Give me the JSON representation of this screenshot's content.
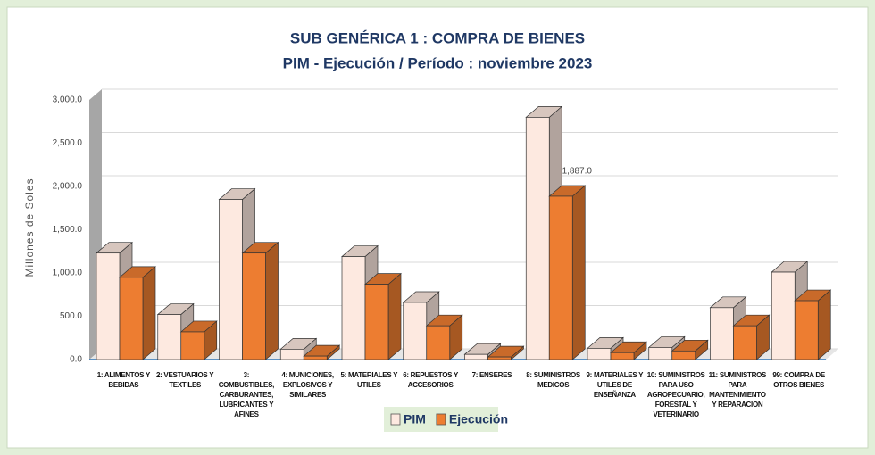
{
  "chart_data": {
    "type": "bar3d",
    "title": "SUB GENÉRICA 1 : COMPRA DE BIENES",
    "subtitle": "PIM - Ejecución / Período : noviembre 2023",
    "y_label": "Millones de Soles",
    "categories": [
      "1: ALIMENTOS Y BEBIDAS",
      "2: VESTUARIOS Y TEXTILES",
      "3: COMBUSTIBLES, CARBURANTES, LUBRICANTES Y AFINES",
      "4: MUNICIONES, EXPLOSIVOS Y SIMILARES",
      "5: MATERIALES Y UTILES",
      "6: REPUESTOS Y ACCESORIOS",
      "7: ENSERES",
      "8: SUMINISTROS MEDICOS",
      "9: MATERIALES Y UTILES DE ENSEÑANZA",
      "10: SUMINISTROS PARA USO AGROPECUARIO, FORESTAL Y VETERINARIO",
      "11: SUMINISTROS PARA MANTENIMIENTO Y REPARACION",
      "99: COMPRA DE OTROS BIENES"
    ],
    "series": [
      {
        "name": "PIM",
        "color": "#fde9e0",
        "values": [
          1230,
          520,
          1850,
          120,
          1190,
          660,
          60,
          2800,
          130,
          140,
          600,
          1010
        ]
      },
      {
        "name": "Ejecución",
        "color": "#ed7d31",
        "values": [
          950,
          320,
          1230,
          40,
          870,
          390,
          30,
          1887,
          80,
          100,
          390,
          680
        ],
        "value_labels": [
          null,
          null,
          null,
          null,
          null,
          null,
          null,
          "1,887.0",
          null,
          null,
          null,
          null
        ]
      }
    ],
    "ylim": [
      0,
      3000
    ],
    "yticks": [
      {
        "value": 0,
        "label": "0.0"
      },
      {
        "value": 500,
        "label": "500.0"
      },
      {
        "value": 1000,
        "label": "1,000.0"
      },
      {
        "value": 1500,
        "label": "1,500.0"
      },
      {
        "value": 2000,
        "label": "2,000.0"
      },
      {
        "value": 2500,
        "label": "2,500.0"
      },
      {
        "value": 3000,
        "label": "3,000.0"
      }
    ],
    "grid": true,
    "legend": "bottom"
  }
}
